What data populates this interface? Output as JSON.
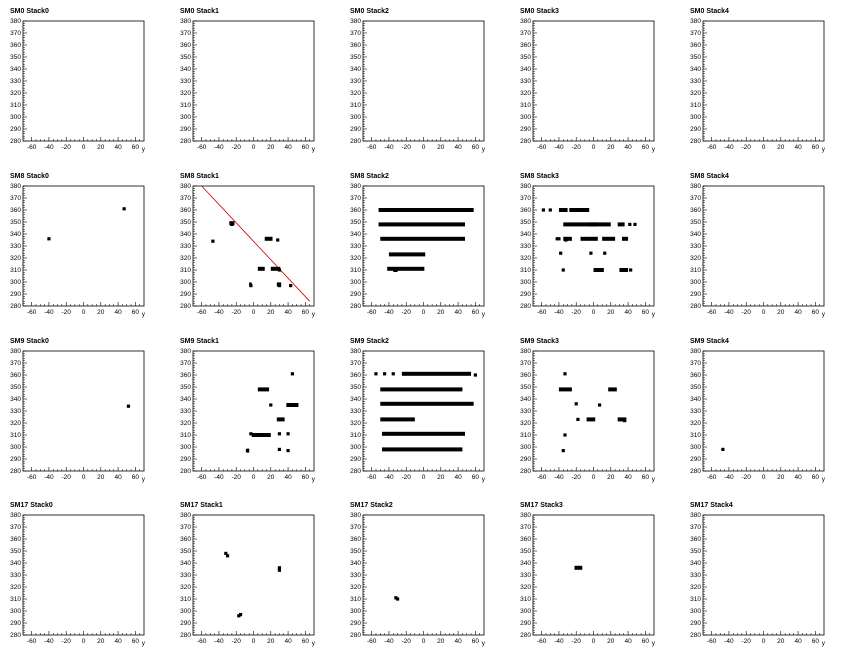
{
  "chart_data": {
    "type": "scatter",
    "xlabel": "y",
    "xlim": [
      -70,
      70
    ],
    "ylim": [
      280,
      380
    ],
    "xticks": [
      -60,
      -40,
      -20,
      0,
      20,
      40,
      60
    ],
    "yticks": [
      280,
      290,
      300,
      310,
      320,
      330,
      340,
      350,
      360,
      370,
      380
    ],
    "panels": [
      {
        "title": "SM0 Stack0",
        "points": [],
        "bars": []
      },
      {
        "title": "SM0 Stack1",
        "points": [],
        "bars": []
      },
      {
        "title": "SM0 Stack2",
        "points": [],
        "bars": []
      },
      {
        "title": "SM0 Stack3",
        "points": [],
        "bars": []
      },
      {
        "title": "SM0 Stack4",
        "points": [],
        "bars": []
      },
      {
        "title": "SM8 Stack0",
        "points": [
          [
            -40,
            336
          ],
          [
            47,
            361
          ]
        ],
        "bars": []
      },
      {
        "title": "SM8 Stack1",
        "line": [
          [
            -60,
            380
          ],
          [
            65,
            284
          ]
        ],
        "points": [
          [
            -47,
            334
          ],
          [
            -25,
            348
          ],
          [
            18,
            336
          ],
          [
            28,
            335
          ],
          [
            8,
            311
          ],
          [
            24,
            311
          ],
          [
            30,
            310
          ],
          [
            -3,
            297
          ],
          [
            30,
            297
          ],
          [
            43,
            297
          ]
        ],
        "bars": [
          [
            -28,
            -22,
            349
          ],
          [
            13,
            22,
            336
          ],
          [
            5,
            13,
            311
          ],
          [
            20,
            31,
            311
          ],
          [
            -5,
            -2,
            298
          ],
          [
            27,
            32,
            298
          ]
        ]
      },
      {
        "title": "SM8 Stack2",
        "points": [],
        "bars": [
          [
            -52,
            58,
            360
          ],
          [
            -52,
            48,
            348
          ],
          [
            -50,
            48,
            336
          ],
          [
            -40,
            2,
            323
          ],
          [
            -42,
            1,
            311
          ],
          [
            -35,
            -30,
            310
          ]
        ]
      },
      {
        "title": "SM8 Stack3",
        "points": [
          [
            -58,
            360
          ],
          [
            -50,
            360
          ],
          [
            -42,
            336
          ],
          [
            -38,
            324
          ],
          [
            -35,
            310
          ],
          [
            -3,
            324
          ],
          [
            13,
            324
          ],
          [
            42,
            348
          ],
          [
            48,
            348
          ],
          [
            43,
            310
          ],
          [
            -40,
            336
          ],
          [
            -32,
            335
          ],
          [
            -10,
            336
          ]
        ],
        "bars": [
          [
            -28,
            -5,
            360
          ],
          [
            -40,
            -30,
            360
          ],
          [
            -35,
            5,
            348
          ],
          [
            -5,
            20,
            348
          ],
          [
            28,
            36,
            348
          ],
          [
            -35,
            -25,
            336
          ],
          [
            -15,
            5,
            336
          ],
          [
            10,
            25,
            336
          ],
          [
            33,
            40,
            336
          ],
          [
            0,
            12,
            310
          ],
          [
            30,
            40,
            310
          ]
        ]
      },
      {
        "title": "SM8 Stack4",
        "points": [],
        "bars": []
      },
      {
        "title": "SM9 Stack0",
        "points": [
          [
            52,
            334
          ]
        ],
        "bars": []
      },
      {
        "title": "SM9 Stack1",
        "points": [
          [
            45,
            361
          ],
          [
            20,
            335
          ],
          [
            30,
            298
          ],
          [
            -3,
            311
          ],
          [
            30,
            311
          ],
          [
            40,
            311
          ],
          [
            40,
            297
          ],
          [
            -7,
            297
          ]
        ],
        "bars": [
          [
            5,
            18,
            348
          ],
          [
            38,
            52,
            335
          ],
          [
            27,
            36,
            323
          ],
          [
            -2,
            20,
            310
          ],
          [
            -8,
            -5,
            297
          ]
        ]
      },
      {
        "title": "SM9 Stack2",
        "points": [
          [
            -55,
            361
          ],
          [
            -45,
            361
          ],
          [
            -35,
            361
          ],
          [
            60,
            360
          ]
        ],
        "bars": [
          [
            -25,
            55,
            361
          ],
          [
            -50,
            45,
            348
          ],
          [
            -50,
            58,
            336
          ],
          [
            -50,
            -10,
            323
          ],
          [
            -48,
            48,
            311
          ],
          [
            -48,
            45,
            298
          ]
        ]
      },
      {
        "title": "SM9 Stack3",
        "points": [
          [
            -33,
            361
          ],
          [
            -20,
            336
          ],
          [
            -18,
            323
          ],
          [
            7,
            335
          ],
          [
            -33,
            310
          ],
          [
            -35,
            297
          ],
          [
            36,
            322
          ]
        ],
        "bars": [
          [
            -40,
            -25,
            348
          ],
          [
            17,
            27,
            348
          ],
          [
            -8,
            2,
            323
          ],
          [
            28,
            38,
            323
          ]
        ]
      },
      {
        "title": "SM9 Stack4",
        "points": [
          [
            -47,
            298
          ]
        ],
        "bars": []
      },
      {
        "title": "SM17 Stack0",
        "points": [],
        "bars": []
      },
      {
        "title": "SM17 Stack1",
        "points": [
          [
            -32,
            348
          ],
          [
            -30,
            346
          ],
          [
            30,
            336
          ],
          [
            30,
            334
          ],
          [
            -15,
            297
          ],
          [
            -17,
            296
          ]
        ],
        "bars": []
      },
      {
        "title": "SM17 Stack2",
        "points": [
          [
            -32,
            311
          ],
          [
            -30,
            310
          ]
        ],
        "bars": []
      },
      {
        "title": "SM17 Stack3",
        "points": [],
        "bars": [
          [
            -22,
            -13,
            336
          ]
        ]
      },
      {
        "title": "SM17 Stack4",
        "points": [],
        "bars": []
      }
    ]
  }
}
